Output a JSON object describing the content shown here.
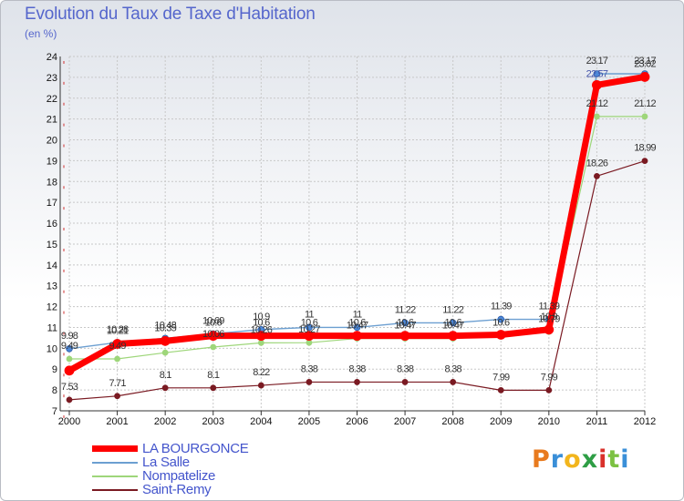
{
  "header": {
    "title": "Evolution du Taux de Taxe d'Habitation",
    "unit": "(en %)"
  },
  "logo": {
    "text": "Proxiti",
    "colors": [
      "#e87a1e",
      "#3a8fd8",
      "#f2b51c",
      "#2e9e45",
      "#d9312b",
      "#7cc142",
      "#3a8fd8"
    ]
  },
  "chart_data": {
    "type": "line",
    "x": [
      2000,
      2001,
      2002,
      2003,
      2004,
      2005,
      2006,
      2007,
      2008,
      2009,
      2010,
      2011,
      2012
    ],
    "ylim": [
      7,
      24
    ],
    "yticks": [
      7,
      8,
      9,
      10,
      11,
      12,
      13,
      14,
      15,
      16,
      17,
      18,
      19,
      20,
      21,
      22,
      23,
      24
    ],
    "grid": true,
    "legend_position": "bottom-left",
    "series": [
      {
        "name": "LA BOURGONCE",
        "color": "#ff0000",
        "values": [
          8.93,
          10.21,
          10.35,
          10.6,
          10.6,
          10.6,
          10.6,
          10.6,
          10.6,
          10.65,
          10.9,
          22.63,
          23.02
        ],
        "labels": [
          "",
          "10.21",
          "10.35",
          "10.6",
          "10.6",
          "10.6",
          "10.6",
          "10.6",
          "10.6",
          "",
          "10.9",
          "",
          "23.02"
        ]
      },
      {
        "name": "La Salle",
        "color": "#6c9fd1",
        "values": [
          9.98,
          10.28,
          10.48,
          10.69,
          10.9,
          11,
          11,
          11.22,
          11.22,
          11.39,
          11.39,
          23.17,
          23.17
        ],
        "labels": [
          "9.98",
          "10.28",
          "10.48",
          "10.69",
          "10.9",
          "11",
          "11",
          "11.22",
          "11.22",
          "11.39",
          "11.39",
          "23.17",
          "23.17"
        ]
      },
      {
        "name": "Nompatelize",
        "color": "#9ed67a",
        "values": [
          9.49,
          9.49,
          9.79,
          10.06,
          10.26,
          10.27,
          10.47,
          10.47,
          10.47,
          10.6,
          10.79,
          21.12,
          21.12
        ],
        "labels": [
          "9.49",
          "9.49",
          "",
          "10.06",
          "10.26",
          "10.27",
          "10.47",
          "10.47",
          "10.47",
          "10.6",
          "10.79",
          "21.12",
          "21.12"
        ]
      },
      {
        "name": "Saint-Remy",
        "color": "#7a1a22",
        "values": [
          7.53,
          7.71,
          8.1,
          8.1,
          8.22,
          8.38,
          8.38,
          8.38,
          8.38,
          7.99,
          7.99,
          18.26,
          18.99
        ],
        "labels": [
          "7.53",
          "7.71",
          "8.1",
          "8.1",
          "8.22",
          "8.38",
          "8.38",
          "8.38",
          "8.38",
          "7.99",
          "7.99",
          "18.26",
          "18.99"
        ]
      }
    ],
    "extra_labels": [
      {
        "x": 2011,
        "text": "22.57",
        "value": 22.57,
        "color": "#4455aa"
      }
    ]
  }
}
